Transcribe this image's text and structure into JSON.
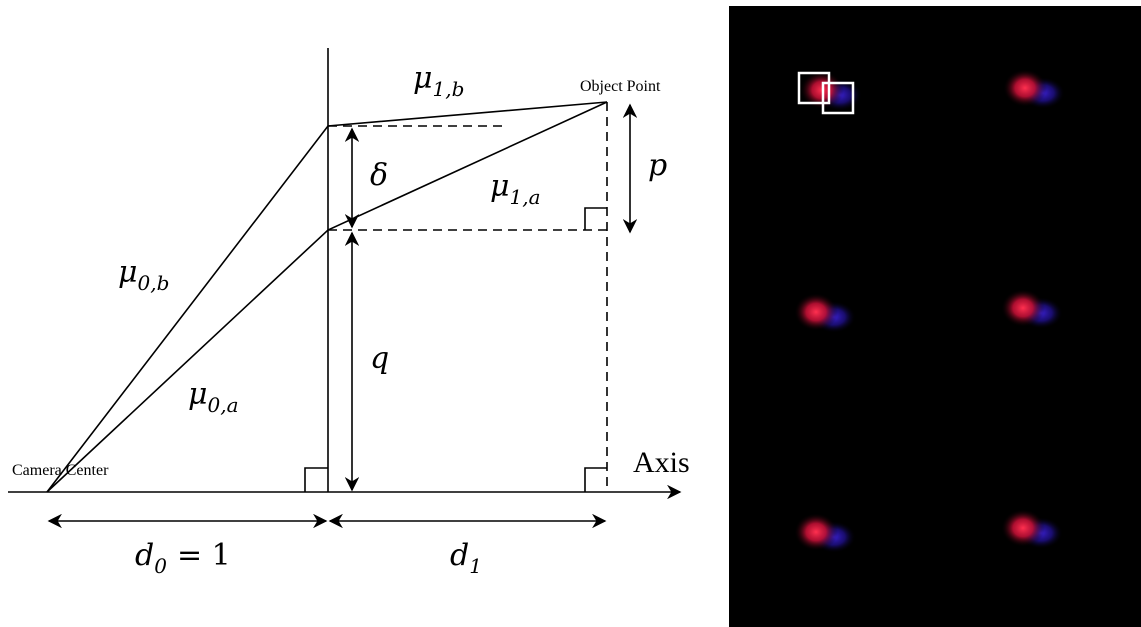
{
  "diagram": {
    "object_point": "Object Point",
    "camera_center": "Camera Center",
    "axis": "Axis",
    "mu_1b": {
      "symbol": "μ",
      "subscript": "1,b"
    },
    "mu_1a": {
      "symbol": "μ",
      "subscript": "1,a"
    },
    "mu_0b": {
      "symbol": "μ",
      "subscript": "0,b"
    },
    "mu_0a": {
      "symbol": "μ",
      "subscript": "0,a"
    },
    "delta": "δ",
    "p": "p",
    "q": "q",
    "d0": {
      "symbol": "d",
      "subscript": "0",
      "rest": "= 1"
    },
    "d1": {
      "symbol": "d",
      "subscript": "1"
    }
  }
}
